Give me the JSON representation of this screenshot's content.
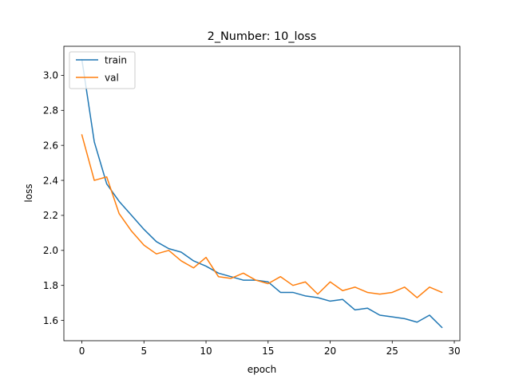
{
  "chart_data": {
    "type": "line",
    "title": "2_Number: 10_loss",
    "xlabel": "epoch",
    "ylabel": "loss",
    "xlim": [
      -1.45,
      30.45
    ],
    "ylim": [
      1.484,
      3.166
    ],
    "xticks": [
      0,
      5,
      10,
      15,
      20,
      25,
      30
    ],
    "yticks": [
      1.6,
      1.8,
      2.0,
      2.2,
      2.4,
      2.6,
      2.8,
      3.0
    ],
    "xtick_labels": [
      "0",
      "5",
      "10",
      "15",
      "20",
      "25",
      "30"
    ],
    "ytick_labels": [
      "1.6",
      "1.8",
      "2.0",
      "2.2",
      "2.4",
      "2.6",
      "2.8",
      "3.0"
    ],
    "grid": false,
    "legend_position": "upper left",
    "x": [
      0,
      1,
      2,
      3,
      4,
      5,
      6,
      7,
      8,
      9,
      10,
      11,
      12,
      13,
      14,
      15,
      16,
      17,
      18,
      19,
      20,
      21,
      22,
      23,
      24,
      25,
      26,
      27,
      28,
      29
    ],
    "series": [
      {
        "name": "train",
        "color": "#1f77b4",
        "values": [
          3.09,
          2.62,
          2.38,
          2.28,
          2.2,
          2.12,
          2.05,
          2.01,
          1.99,
          1.94,
          1.91,
          1.87,
          1.85,
          1.83,
          1.83,
          1.82,
          1.76,
          1.76,
          1.74,
          1.73,
          1.71,
          1.72,
          1.66,
          1.67,
          1.63,
          1.62,
          1.61,
          1.59,
          1.63,
          1.56
        ]
      },
      {
        "name": "val",
        "color": "#ff7f0e",
        "values": [
          2.66,
          2.4,
          2.42,
          2.21,
          2.11,
          2.03,
          1.98,
          2.0,
          1.94,
          1.9,
          1.96,
          1.85,
          1.84,
          1.87,
          1.83,
          1.81,
          1.85,
          1.8,
          1.82,
          1.75,
          1.82,
          1.77,
          1.79,
          1.76,
          1.75,
          1.76,
          1.79,
          1.73,
          1.79,
          1.76
        ]
      }
    ]
  }
}
